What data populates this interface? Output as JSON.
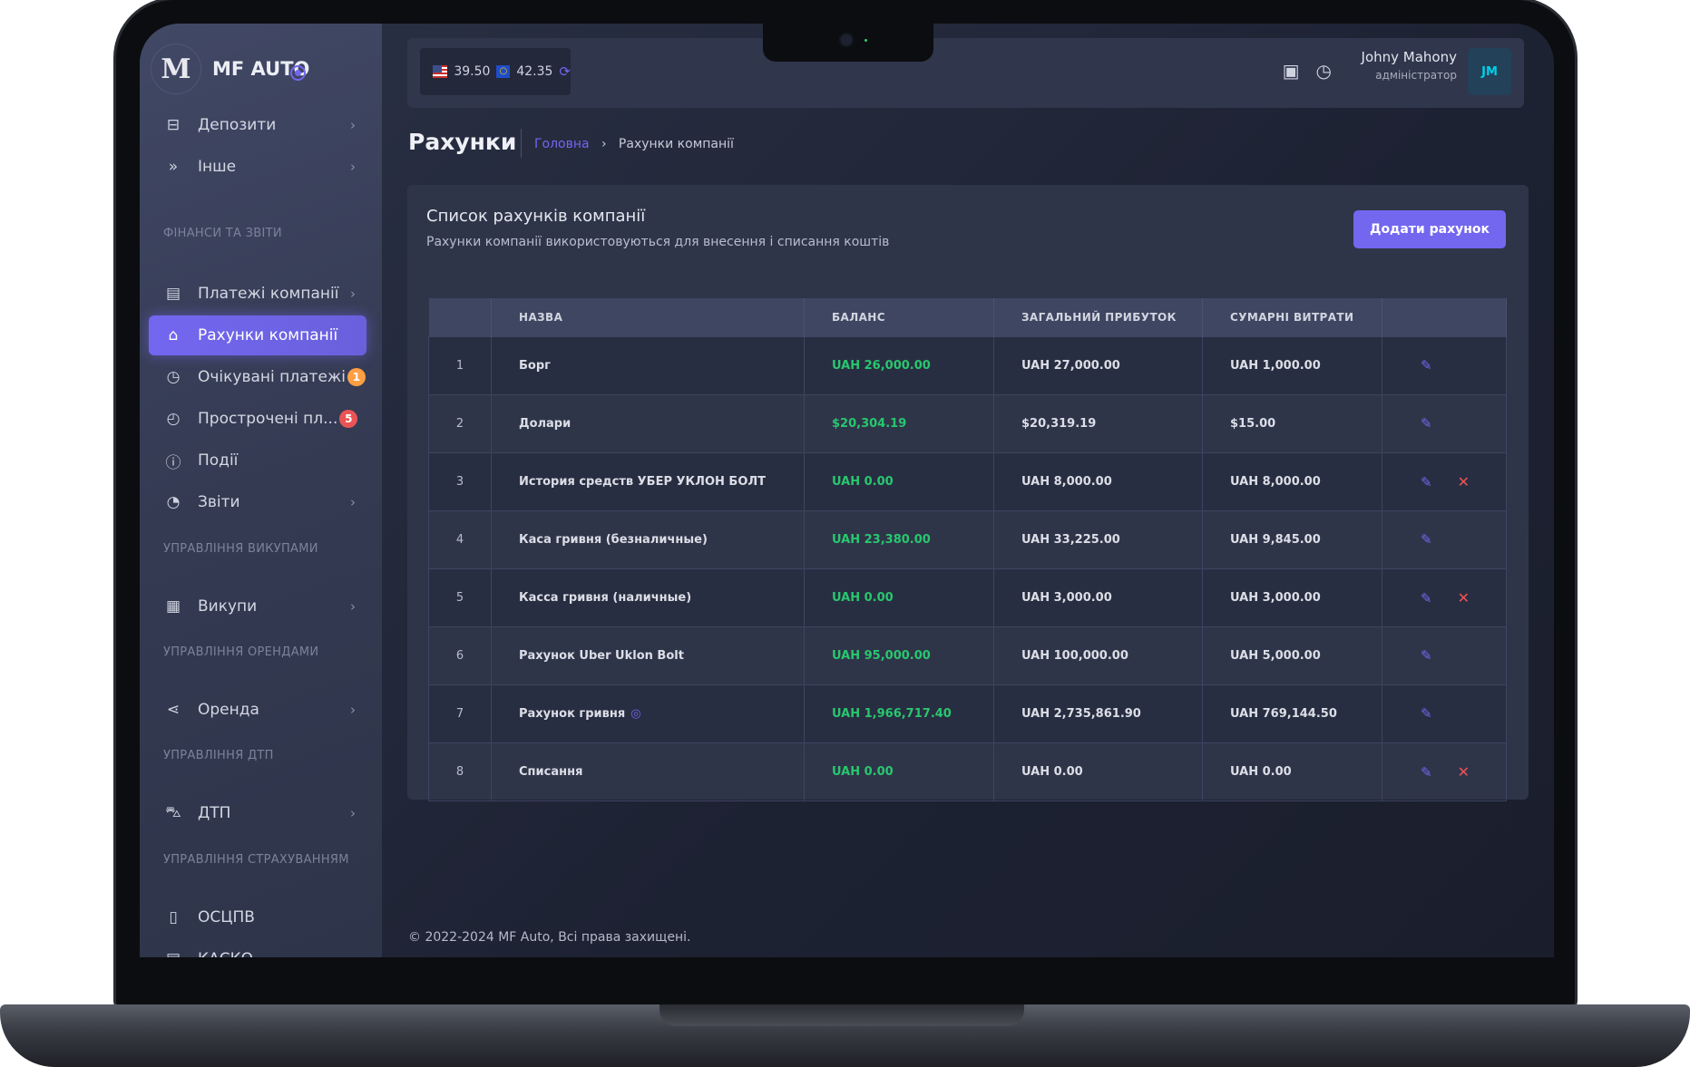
{
  "app": {
    "name": "MF AUTO",
    "logo_letter": "M"
  },
  "sidebar": {
    "items": [
      {
        "label": "Депозити",
        "icon": "inbox-icon",
        "glyph": "⊟",
        "chevron": true
      },
      {
        "label": "Інше",
        "icon": "chevrons-down-icon",
        "glyph": "»",
        "chevron": true
      },
      {
        "label": "Платежі компанії",
        "icon": "clipboard-icon",
        "glyph": "▤",
        "chevron": true
      },
      {
        "label": "Рахунки компанії",
        "icon": "bank-icon",
        "glyph": "⌂",
        "active": true
      },
      {
        "label": "Очікувані платежі",
        "icon": "clock-icon",
        "glyph": "◷",
        "badge": "1",
        "badge_color": "#ff9f43"
      },
      {
        "label": "Прострочені пл...",
        "icon": "clock-x-icon",
        "glyph": "◴",
        "badge": "5",
        "badge_color": "#ea5455"
      },
      {
        "label": "Події",
        "icon": "alert-circle-icon",
        "glyph": "ⓘ"
      },
      {
        "label": "Звіти",
        "icon": "pie-chart-icon",
        "glyph": "◔",
        "chevron": true
      },
      {
        "label": "Викупи",
        "icon": "receipt-icon",
        "glyph": "▦",
        "chevron": true
      },
      {
        "label": "Оренда",
        "icon": "share-icon",
        "glyph": "⋖",
        "chevron": true
      },
      {
        "label": "ДТП",
        "icon": "car-crash-icon",
        "glyph": "⛍",
        "chevron": true
      },
      {
        "label": "ОСЦПВ",
        "icon": "file-icon",
        "glyph": "▯"
      },
      {
        "label": "КАСКО",
        "icon": "file-text-icon",
        "glyph": "▤"
      }
    ],
    "sections": [
      "ФІНАНСИ ТА ЗВІТИ",
      "УПРАВЛІННЯ ВИКУПАМИ",
      "УПРАВЛІННЯ ОРЕНДАМИ",
      "УПРАВЛІННЯ ДТП",
      "УПРАВЛІННЯ СТРАХУВАННЯМ"
    ]
  },
  "header": {
    "usd_rate": "39.50",
    "eur_rate": "42.35",
    "user_name": "Johny Mahony",
    "user_role": "адміністратор",
    "avatar_initials": "JM"
  },
  "page": {
    "title": "Рахунки",
    "breadcrumb_home": "Головна",
    "breadcrumb_current": "Рахунки компанії"
  },
  "card": {
    "title": "Список рахунків компанії",
    "subtitle": "Рахунки компанії використовуються для внесення і списання коштів",
    "add_button": "Додати рахунок"
  },
  "table": {
    "columns": [
      "",
      "НАЗВА",
      "БАЛАНС",
      "ЗАГАЛЬНИЙ ПРИБУТОК",
      "СУМАРНІ ВИТРАТИ",
      ""
    ],
    "rows": [
      {
        "n": "1",
        "name": "Борг",
        "balance": "UAH 26,000.00",
        "profit": "UAH 27,000.00",
        "expenses": "UAH 1,000.00",
        "deletable": false
      },
      {
        "n": "2",
        "name": "Долари",
        "balance": "$20,304.19",
        "profit": "$20,319.19",
        "expenses": "$15.00",
        "deletable": false
      },
      {
        "n": "3",
        "name": "История средств УБЕР УКЛОН БОЛТ",
        "balance": "UAH 0.00",
        "profit": "UAH 8,000.00",
        "expenses": "UAH 8,000.00",
        "deletable": true
      },
      {
        "n": "4",
        "name": "Каса гривня (безналичные)",
        "balance": "UAH 23,380.00",
        "profit": "UAH 33,225.00",
        "expenses": "UAH 9,845.00",
        "deletable": false
      },
      {
        "n": "5",
        "name": "Касса гривня (наличные)",
        "balance": "UAH 0.00",
        "profit": "UAH 3,000.00",
        "expenses": "UAH 3,000.00",
        "deletable": true
      },
      {
        "n": "6",
        "name": "Рахунок Uber Uklon Bolt",
        "balance": "UAH 95,000.00",
        "profit": "UAH 100,000.00",
        "expenses": "UAH 5,000.00",
        "deletable": false
      },
      {
        "n": "7",
        "name": "Рахунок гривня",
        "balance": "UAH 1,966,717.40",
        "profit": "UAH 2,735,861.90",
        "expenses": "UAH 769,144.50",
        "deletable": false,
        "verified": true
      },
      {
        "n": "8",
        "name": "Списання",
        "balance": "UAH 0.00",
        "profit": "UAH 0.00",
        "expenses": "UAH 0.00",
        "deletable": true
      }
    ]
  },
  "footer": {
    "text": "© 2022-2024 MF Auto, Всі права захищені."
  },
  "colors": {
    "accent": "#7367f0",
    "positive": "#28c76f",
    "danger": "#ea5455",
    "warning": "#ff9f43"
  }
}
